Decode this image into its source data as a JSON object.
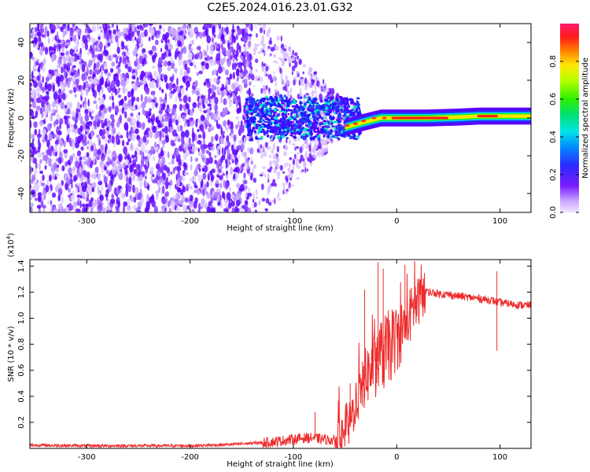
{
  "title": "C2E5.2024.016.23.01.G32",
  "colors": {
    "line": "#ee2b2b",
    "spectro_dark": "#5a00ff",
    "spectro_light": "#d8c2ff",
    "axis": "#000000"
  },
  "chart_data": [
    {
      "type": "heatmap",
      "xlabel": "Height of straight line (km)",
      "ylabel": "Frequency (Hz)",
      "xlim": [
        -355,
        130
      ],
      "ylim": [
        -50,
        50
      ],
      "xticks": [
        -300,
        -200,
        -100,
        0,
        100
      ],
      "yticks": [
        -40,
        -20,
        0,
        20,
        40
      ],
      "colorbar": {
        "label": "Normalized spectral amplitude",
        "range": [
          0.0,
          1.0
        ],
        "ticks": [
          0.0,
          0.2,
          0.4,
          0.6,
          0.8
        ],
        "colormap": "rainbow (violet to red)"
      },
      "noise_region_x": [
        -355,
        -140
      ],
      "transition_x": [
        -140,
        -50
      ],
      "signal_line": {
        "x": [
          -50,
          -30,
          -15,
          0,
          30,
          60,
          80,
          100,
          130
        ],
        "freq": [
          -5,
          -2,
          0,
          0,
          0,
          0.5,
          1,
          1,
          1
        ]
      },
      "grid": false,
      "legend": "colorbar-right"
    },
    {
      "type": "line",
      "xlabel": "Height of straight line (km)",
      "ylabel": "SNR (10 * v/v)",
      "yscale_label": "(x10",
      "yscale_exp": "4",
      "yscale_close": ")",
      "xlim": [
        -355,
        130
      ],
      "ylim": [
        0,
        1.45
      ],
      "xticks": [
        -300,
        -200,
        -100,
        0,
        100
      ],
      "yticks": [
        0.2,
        0.4,
        0.6,
        0.8,
        1.0,
        1.2,
        1.4
      ],
      "series": [
        {
          "x": [
            -355,
            -300,
            -250,
            -200,
            -180,
            -160,
            -140,
            -120,
            -110,
            -100,
            -90,
            -80,
            -70,
            -60,
            -50,
            -45,
            -40,
            -35,
            -30,
            -25,
            -20,
            -15,
            -10,
            -5,
            0,
            5,
            10,
            15,
            20,
            25,
            30,
            40,
            50,
            60,
            70,
            80,
            90,
            95,
            100,
            110,
            120,
            130
          ],
          "y": [
            0.025,
            0.02,
            0.02,
            0.02,
            0.025,
            0.03,
            0.04,
            0.05,
            0.06,
            0.07,
            0.08,
            0.08,
            0.07,
            0.06,
            0.09,
            0.2,
            0.35,
            0.45,
            0.55,
            0.6,
            0.65,
            0.7,
            0.75,
            0.8,
            0.85,
            0.9,
            0.97,
            1.05,
            1.12,
            1.18,
            1.2,
            1.19,
            1.18,
            1.17,
            1.16,
            1.15,
            1.14,
            1.13,
            1.12,
            1.11,
            1.1,
            1.1
          ]
        }
      ],
      "spikes": [
        {
          "x": -79,
          "y": 0.28
        },
        {
          "x": -45,
          "y": 0.5
        },
        {
          "x": -31,
          "y": 1.22
        },
        {
          "x": -18,
          "y": 1.43
        },
        {
          "x": -13,
          "y": 1.38
        },
        {
          "x": 8,
          "y": 1.41
        },
        {
          "x": 97,
          "y": 1.36
        },
        {
          "x": 97,
          "y": 0.75
        }
      ],
      "grid": false,
      "legend": "none"
    }
  ]
}
